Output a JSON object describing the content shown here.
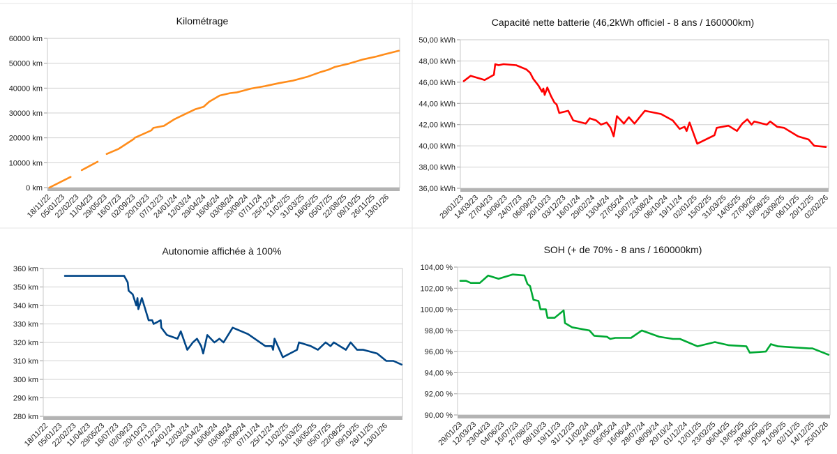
{
  "chart_data": [
    {
      "id": "km",
      "type": "line",
      "title": "Kilométrage",
      "xlabel": "",
      "ylabel": "",
      "ylim": [
        0,
        60000
      ],
      "y_ticks": [
        "0 km",
        "10000 km",
        "20000 km",
        "30000 km",
        "40000 km",
        "50000 km",
        "60000 km"
      ],
      "x_unit": "days since 18/11/22",
      "x_ticks": [
        "18/11/22",
        "05/01/23",
        "22/02/23",
        "11/04/23",
        "29/05/23",
        "16/07/23",
        "02/09/23",
        "20/10/23",
        "07/12/23",
        "24/01/24",
        "12/03/24",
        "29/04/24",
        "16/06/24",
        "03/08/24",
        "20/09/24",
        "07/11/24",
        "25/12/24",
        "11/02/25",
        "31/03/25",
        "18/05/25",
        "05/07/25",
        "22/08/25",
        "09/10/25",
        "26/11/25",
        "13/01/26"
      ],
      "tick_step_days": 48,
      "color": "#ff8c1a",
      "segments": [
        [
          [
            2,
            0
          ],
          [
            74,
            4300
          ]
        ],
        [
          [
            112,
            7000
          ],
          [
            166,
            10400
          ]
        ],
        [
          [
            197,
            13500
          ],
          [
            238,
            15600
          ],
          [
            290,
            19600
          ]
        ],
        [
          [
            292,
            20000
          ],
          [
            349,
            23000
          ],
          [
            356,
            24000
          ],
          [
            392,
            24800
          ],
          [
            428,
            27500
          ],
          [
            463,
            29500
          ],
          [
            499,
            31500
          ],
          [
            527,
            32500
          ],
          [
            546,
            34500
          ],
          [
            582,
            37000
          ],
          [
            618,
            38000
          ],
          [
            641,
            38300
          ],
          [
            689,
            39800
          ],
          [
            736,
            40800
          ],
          [
            784,
            42000
          ],
          [
            831,
            43000
          ],
          [
            879,
            44500
          ],
          [
            926,
            46500
          ],
          [
            950,
            47300
          ],
          [
            974,
            48500
          ],
          [
            1021,
            49800
          ],
          [
            1069,
            51500
          ],
          [
            1116,
            52700
          ],
          [
            1140,
            53500
          ],
          [
            1192,
            55000
          ]
        ]
      ]
    },
    {
      "id": "capacity",
      "type": "line",
      "title": "Capacité nette batterie (46,2kWh officiel - 8 ans / 160000km)",
      "xlabel": "",
      "ylabel": "",
      "ylim": [
        36,
        50
      ],
      "y_ticks": [
        "36,00 kWh",
        "38,00 kWh",
        "40,00 kWh",
        "42,00 kWh",
        "44,00 kWh",
        "46,00 kWh",
        "48,00 kWh",
        "50,00 kWh"
      ],
      "x_unit": "days since 29/01/23",
      "x_ticks": [
        "29/01/23",
        "14/03/23",
        "27/04/23",
        "10/06/23",
        "24/07/23",
        "06/09/23",
        "20/10/23",
        "03/12/23",
        "16/01/24",
        "29/02/24",
        "13/04/24",
        "27/05/24",
        "10/07/24",
        "23/08/24",
        "06/10/24",
        "19/11/24",
        "02/01/25",
        "15/02/25",
        "31/03/25",
        "14/05/25",
        "27/06/25",
        "10/08/25",
        "23/09/25",
        "06/11/25",
        "20/12/25",
        "02/02/26"
      ],
      "tick_step_days": 44,
      "color": "#ff0000",
      "segments": [
        [
          [
            6,
            46.1
          ],
          [
            27,
            46.6
          ],
          [
            59,
            46.3
          ],
          [
            69,
            46.2
          ],
          [
            97,
            46.7
          ],
          [
            101,
            47.7
          ],
          [
            111,
            47.6
          ],
          [
            126,
            47.7
          ],
          [
            164,
            47.6
          ],
          [
            195,
            47.2
          ],
          [
            206,
            46.9
          ],
          [
            216,
            46.3
          ],
          [
            231,
            45.7
          ],
          [
            242,
            45.1
          ],
          [
            246,
            45.4
          ],
          [
            250,
            44.8
          ],
          [
            258,
            45.5
          ],
          [
            269,
            44.7
          ],
          [
            279,
            44.1
          ],
          [
            286,
            43.9
          ],
          [
            294,
            43.1
          ],
          [
            321,
            43.3
          ],
          [
            336,
            42.4
          ],
          [
            374,
            42.1
          ],
          [
            386,
            42.6
          ],
          [
            405,
            42.4
          ],
          [
            420,
            42.0
          ],
          [
            437,
            42.2
          ],
          [
            449,
            41.7
          ],
          [
            458,
            40.9
          ],
          [
            468,
            42.8
          ],
          [
            489,
            42.1
          ],
          [
            504,
            42.7
          ],
          [
            521,
            42.1
          ],
          [
            552,
            43.3
          ],
          [
            601,
            43.0
          ],
          [
            636,
            42.4
          ],
          [
            657,
            41.6
          ],
          [
            672,
            41.8
          ],
          [
            678,
            41.4
          ],
          [
            687,
            42.2
          ],
          [
            710,
            40.2
          ],
          [
            762,
            41.0
          ],
          [
            769,
            41.7
          ],
          [
            804,
            41.9
          ],
          [
            830,
            41.4
          ],
          [
            846,
            42.1
          ],
          [
            861,
            42.5
          ],
          [
            874,
            42.0
          ],
          [
            882,
            42.3
          ],
          [
            920,
            42.0
          ],
          [
            930,
            42.3
          ],
          [
            951,
            41.8
          ],
          [
            972,
            41.7
          ],
          [
            1014,
            40.9
          ],
          [
            1046,
            40.6
          ],
          [
            1063,
            40.0
          ],
          [
            1098,
            39.9
          ]
        ]
      ]
    },
    {
      "id": "range",
      "type": "line",
      "title": "Autonomie affichée à 100%",
      "xlabel": "",
      "ylabel": "",
      "ylim": [
        280,
        360
      ],
      "y_ticks": [
        "280 km",
        "290 km",
        "300 km",
        "310 km",
        "320 km",
        "330 km",
        "340 km",
        "350 km",
        "360 km"
      ],
      "x_unit": "days since 18/11/22",
      "x_ticks": [
        "18/11/22",
        "05/01/23",
        "22/02/23",
        "11/04/23",
        "29/05/23",
        "16/07/23",
        "02/09/23",
        "20/10/23",
        "07/12/23",
        "24/01/24",
        "12/03/24",
        "29/04/24",
        "16/06/24",
        "03/08/24",
        "20/09/24",
        "07/11/24",
        "25/12/24",
        "11/02/25",
        "31/03/25",
        "18/05/25",
        "05/07/25",
        "22/08/25",
        "09/10/25",
        "26/11/25",
        "13/01/26"
      ],
      "tick_step_days": 48,
      "color": "#004586",
      "segments": [
        [
          [
            64,
            356
          ],
          [
            265,
            356
          ],
          [
            277,
            352.5
          ],
          [
            280,
            348
          ],
          [
            294,
            346
          ],
          [
            306,
            340
          ],
          [
            310,
            344
          ],
          [
            313,
            338
          ],
          [
            325,
            344
          ],
          [
            348,
            332
          ],
          [
            360,
            332
          ],
          [
            365,
            330
          ],
          [
            389,
            332
          ],
          [
            391,
            328
          ],
          [
            410,
            324
          ],
          [
            446,
            322
          ],
          [
            457,
            326
          ],
          [
            479,
            316
          ],
          [
            498,
            320
          ],
          [
            512,
            322
          ],
          [
            526,
            318
          ],
          [
            533,
            314
          ],
          [
            547,
            324
          ],
          [
            571,
            320
          ],
          [
            588,
            322
          ],
          [
            602,
            320
          ],
          [
            633,
            328
          ],
          [
            685,
            324.5
          ],
          [
            744,
            318
          ],
          [
            766,
            318
          ],
          [
            770,
            316
          ],
          [
            775,
            322
          ],
          [
            803,
            312
          ],
          [
            851,
            316
          ],
          [
            858,
            320
          ],
          [
            898,
            318
          ],
          [
            922,
            316
          ],
          [
            948,
            320
          ],
          [
            965,
            318
          ],
          [
            976,
            320
          ],
          [
            1017,
            316
          ],
          [
            1033,
            320
          ],
          [
            1055,
            316
          ],
          [
            1076,
            316
          ],
          [
            1123,
            314
          ],
          [
            1154,
            310
          ],
          [
            1178,
            310
          ],
          [
            1206,
            308
          ]
        ]
      ]
    },
    {
      "id": "soh",
      "type": "line",
      "title": "SOH (+ de 70% - 8 ans / 160000km)",
      "xlabel": "",
      "ylabel": "",
      "ylim": [
        90,
        104
      ],
      "y_ticks": [
        "90,00 %",
        "92,00 %",
        "94,00 %",
        "96,00 %",
        "98,00 %",
        "100,00 %",
        "102,00 %",
        "104,00 %"
      ],
      "x_unit": "days since 29/01/23",
      "x_ticks": [
        "29/01/23",
        "12/03/23",
        "23/04/23",
        "04/06/23",
        "16/07/23",
        "27/08/23",
        "08/10/23",
        "19/11/23",
        "31/12/23",
        "11/02/24",
        "24/03/24",
        "05/05/24",
        "16/06/24",
        "28/07/24",
        "08/09/24",
        "20/10/24",
        "01/12/24",
        "12/01/25",
        "23/02/25",
        "06/04/25",
        "18/05/25",
        "29/06/25",
        "10/08/25",
        "21/09/25",
        "02/11/25",
        "14/12/25",
        "25/01/26"
      ],
      "tick_step_days": 42,
      "color": "#00a933",
      "segments": [
        [
          [
            0,
            102.7
          ],
          [
            17,
            102.7
          ],
          [
            31,
            102.5
          ],
          [
            58,
            102.5
          ],
          [
            83,
            103.2
          ],
          [
            114,
            102.9
          ],
          [
            156,
            103.3
          ],
          [
            191,
            103.2
          ],
          [
            200,
            102.4
          ],
          [
            208,
            102.2
          ],
          [
            218,
            100.9
          ],
          [
            233,
            100.8
          ],
          [
            239,
            100.0
          ],
          [
            255,
            100.0
          ],
          [
            260,
            99.2
          ],
          [
            281,
            99.2
          ],
          [
            308,
            99.9
          ],
          [
            312,
            98.7
          ],
          [
            333,
            98.3
          ],
          [
            385,
            98.0
          ],
          [
            399,
            97.5
          ],
          [
            437,
            97.4
          ],
          [
            447,
            97.2
          ],
          [
            462,
            97.3
          ],
          [
            468,
            97.3
          ],
          [
            509,
            97.3
          ],
          [
            541,
            98.0
          ],
          [
            593,
            97.4
          ],
          [
            634,
            97.2
          ],
          [
            655,
            97.2
          ],
          [
            707,
            96.5
          ],
          [
            759,
            96.9
          ],
          [
            801,
            96.6
          ],
          [
            853,
            96.5
          ],
          [
            863,
            95.9
          ],
          [
            911,
            96.0
          ],
          [
            926,
            96.7
          ],
          [
            947,
            96.5
          ],
          [
            1040,
            96.3
          ],
          [
            1050,
            96.3
          ],
          [
            1098,
            95.7
          ]
        ]
      ]
    }
  ]
}
